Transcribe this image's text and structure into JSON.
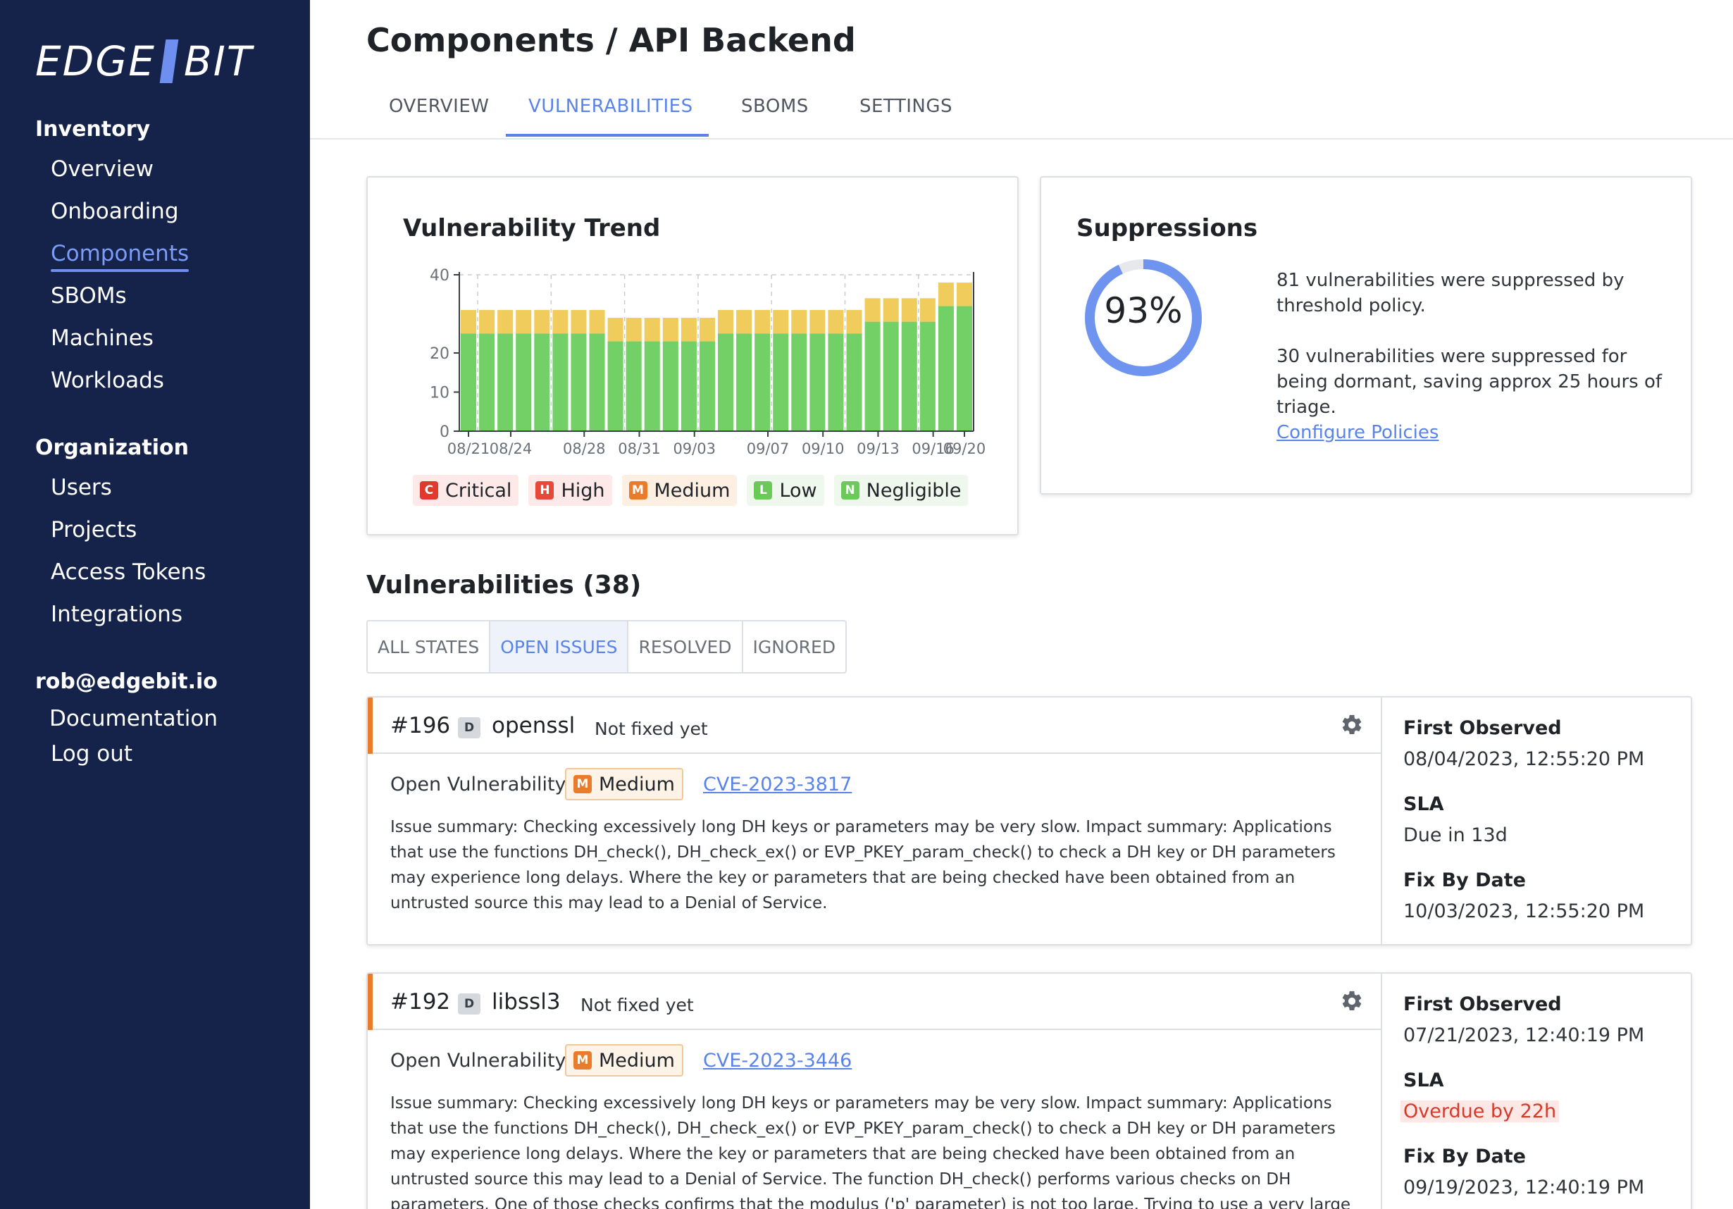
{
  "sidebar": {
    "logo_left": "EDGE",
    "logo_right": "BIT",
    "inventory_heading": "Inventory",
    "inventory_items": [
      "Overview",
      "Onboarding",
      "Components",
      "SBOMs",
      "Machines",
      "Workloads"
    ],
    "organization_heading": "Organization",
    "organization_items": [
      "Users",
      "Projects",
      "Access Tokens",
      "Integrations"
    ],
    "user_email": "rob@edgebit.io",
    "user_items": [
      "Documentation",
      "Log out"
    ],
    "active_item": "Components"
  },
  "header": {
    "title": "Components / API Backend",
    "tabs": [
      "OVERVIEW",
      "VULNERABILITIES",
      "SBOMS",
      "SETTINGS"
    ],
    "active_tab": "VULNERABILITIES"
  },
  "trend_card": {
    "title": "Vulnerability Trend",
    "legend": [
      {
        "letter": "C",
        "label": "Critical",
        "color": "#e03a2f",
        "bg": "#fde9e7"
      },
      {
        "letter": "H",
        "label": "High",
        "color": "#e8473a",
        "bg": "#fde9e7"
      },
      {
        "letter": "M",
        "label": "Medium",
        "color": "#e97b2a",
        "bg": "#fdf0e2"
      },
      {
        "letter": "L",
        "label": "Low",
        "color": "#6bc95a",
        "bg": "#eef8ec"
      },
      {
        "letter": "N",
        "label": "Negligible",
        "color": "#6bc95a",
        "bg": "#eef8ec"
      }
    ]
  },
  "chart_data": {
    "type": "bar",
    "stacked": true,
    "x_tick_labels": [
      "08/21",
      "08/24",
      "08/28",
      "08/31",
      "09/03",
      "09/07",
      "09/10",
      "09/13",
      "09/16",
      "09/20"
    ],
    "y_ticks": [
      0,
      10,
      20,
      40
    ],
    "ylim": [
      0,
      40
    ],
    "series": [
      {
        "name": "Low",
        "color": "#72d067",
        "values": [
          25,
          25,
          25,
          25,
          25,
          25,
          25,
          25,
          23,
          23,
          23,
          23,
          23,
          23,
          25,
          25,
          25,
          25,
          25,
          25,
          25,
          25,
          28,
          28,
          28,
          28,
          32,
          32
        ]
      },
      {
        "name": "Medium",
        "color": "#f0cc5c",
        "values": [
          6,
          6,
          6,
          6,
          6,
          6,
          6,
          6,
          6,
          6,
          6,
          6,
          6,
          6,
          6,
          6,
          6,
          6,
          6,
          6,
          6,
          6,
          6,
          6,
          6,
          6,
          6,
          6
        ]
      }
    ]
  },
  "suppressions": {
    "title": "Suppressions",
    "percent_label": "93%",
    "percent": 0.93,
    "text_1": "81 vulnerabilities were suppressed by threshold policy.",
    "text_2": "30 vulnerabilities were suppressed for being dormant, saving approx 25 hours of triage.",
    "link": "Configure Policies"
  },
  "vulnerabilities": {
    "title": "Vulnerabilities (38)",
    "filters": [
      "ALL STATES",
      "OPEN ISSUES",
      "RESOLVED",
      "IGNORED"
    ],
    "active_filter": "OPEN ISSUES",
    "items": [
      {
        "number": "#196",
        "badge": "D",
        "package": "openssl",
        "fix_status": "Not fixed yet",
        "state": "Open Vulnerability",
        "severity_letter": "M",
        "severity": "Medium",
        "cve": "CVE-2023-3817",
        "description": "Issue summary: Checking excessively long DH keys or parameters may be very slow. Impact summary: Applications that use the functions DH_check(), DH_check_ex() or EVP_PKEY_param_check() to check a DH key or DH parameters may experience long delays. Where the key or parameters that are being checked have been obtained from an untrusted source this may lead to a Denial of Service.",
        "first_observed_label": "First Observed",
        "first_observed": "08/04/2023, 12:55:20 PM",
        "sla_label": "SLA",
        "sla": "Due in 13d",
        "fix_by_label": "Fix By Date",
        "fix_by": "10/03/2023, 12:55:20 PM"
      },
      {
        "number": "#192",
        "badge": "D",
        "package": "libssl3",
        "fix_status": "Not fixed yet",
        "state": "Open Vulnerability",
        "severity_letter": "M",
        "severity": "Medium",
        "cve": "CVE-2023-3446",
        "description": "Issue summary: Checking excessively long DH keys or parameters may be very slow. Impact summary: Applications that use the functions DH_check(), DH_check_ex() or EVP_PKEY_param_check() to check a DH key or DH parameters may experience long delays. Where the key or parameters that are being checked have been obtained from an untrusted source this may lead to a Denial of Service. The function DH_check() performs various checks on DH parameters. One of those checks confirms that the modulus ('p' parameter) is not too large. Trying to use a very large modulus is slow and OpenSSL will not normally use a modulus which is over",
        "first_observed_label": "First Observed",
        "first_observed": "07/21/2023, 12:40:19 PM",
        "sla_label": "SLA",
        "sla": "Overdue by 22h",
        "fix_by_label": "Fix By Date",
        "fix_by": "09/19/2023, 12:40:19 PM"
      }
    ]
  }
}
